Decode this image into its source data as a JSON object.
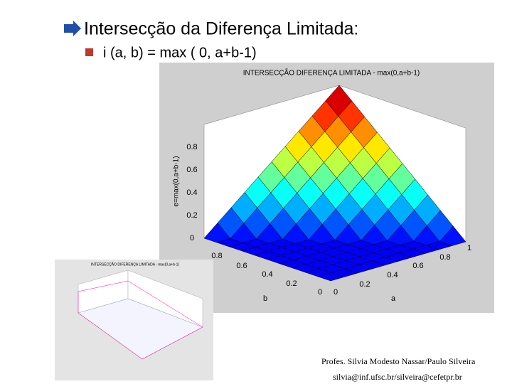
{
  "slide": {
    "heading": "Intersecção da Diferença Limitada:",
    "bullet": "i (a, b) = max ( 0, a+b-1)",
    "plot": {
      "title": "INTERSECÇÃO DIFERENÇA LIMITADA - max(0,a+b-1)",
      "z_label": "e=max(0,a+b-1)",
      "z_ticks": [
        "0",
        "0.2",
        "0.4",
        "0.6",
        "0.8"
      ],
      "b_ticks": [
        "0.8",
        "0.6",
        "0.4",
        "0.2",
        "0"
      ],
      "a_ticks": [
        "0",
        "0.2",
        "0.4",
        "0.6",
        "0.8",
        "1"
      ],
      "b_label": "b",
      "a_label": "a"
    },
    "thumbnail": {
      "title": "INTERSECÇÃO DIFERENÇA LIMITADA - max(0,a+b-1)"
    },
    "footer": {
      "authors": "Profes. Silvia Modesto Nassar/Paulo Silveira",
      "emails": "silvia@inf.ufsc.br/silveira@cefetpr.br"
    }
  }
}
